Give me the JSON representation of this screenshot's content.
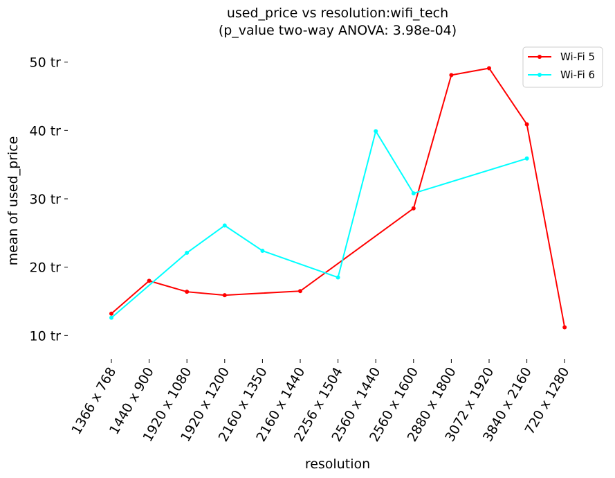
{
  "chart_data": {
    "type": "line",
    "title": "used_price vs resolution:wifi_tech",
    "subtitle": "(p_value two-way ANOVA: 3.98e-04)",
    "xlabel": "resolution",
    "ylabel": "mean of used_price",
    "categories": [
      "1366 x 768",
      "1440 x 900",
      "1920 x 1080",
      "1920 x 1200",
      "2160 x 1350",
      "2160 x 1440",
      "2256 x 1504",
      "2560 x 1440",
      "2560 x 1600",
      "2880 x 1800",
      "3072 x 1920",
      "3840 x 2160",
      "720 x 1280"
    ],
    "yticks": [
      {
        "value": 10,
        "label": "10 tr"
      },
      {
        "value": 20,
        "label": "20 tr"
      },
      {
        "value": 30,
        "label": "30 tr"
      },
      {
        "value": 40,
        "label": "40 tr"
      },
      {
        "value": 50,
        "label": "50 tr"
      }
    ],
    "ylim": [
      7.6,
      52.5
    ],
    "grid": false,
    "legend_position": "top-right",
    "series": [
      {
        "name": "Wi-Fi 5",
        "color": "#ff0000",
        "values": [
          13.2,
          18.0,
          16.4,
          15.9,
          null,
          16.5,
          null,
          null,
          28.6,
          48.1,
          49.1,
          40.9,
          11.2
        ]
      },
      {
        "name": "Wi-Fi 6",
        "color": "#00ffff",
        "values": [
          12.6,
          null,
          22.1,
          26.1,
          22.4,
          null,
          18.5,
          39.9,
          30.8,
          null,
          null,
          35.9,
          null
        ]
      }
    ]
  }
}
